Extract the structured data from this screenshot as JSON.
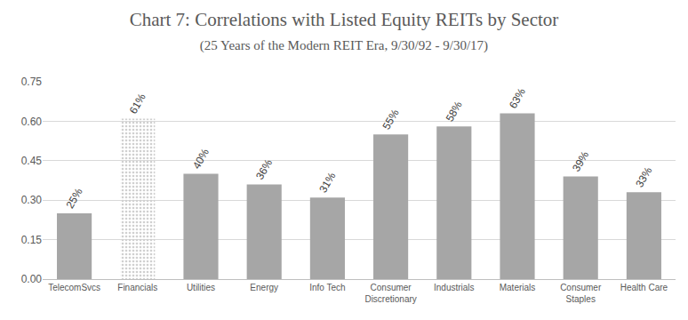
{
  "chart_data": {
    "type": "bar",
    "title": "Chart 7: Correlations with Listed Equity REITs by Sector",
    "subtitle": "(25 Years of the Modern REIT Era, 9/30/92 - 9/30/17)",
    "categories": [
      "TelecomSvcs",
      "Financials",
      "Utilities",
      "Energy",
      "Info Tech",
      "Consumer Discretionary",
      "Industrials",
      "Materials",
      "Consumer Staples",
      "Health Care"
    ],
    "values": [
      0.25,
      0.61,
      0.4,
      0.36,
      0.31,
      0.55,
      0.58,
      0.63,
      0.39,
      0.33
    ],
    "value_labels": [
      "25%",
      "61%",
      "40%",
      "36%",
      "31%",
      "55%",
      "58%",
      "63%",
      "39%",
      "33%"
    ],
    "colors": [
      "#a6a6a6",
      "#d0d0d0",
      "#a6a6a6",
      "#a6a6a6",
      "#a6a6a6",
      "#a6a6a6",
      "#a6a6a6",
      "#a6a6a6",
      "#a6a6a6",
      "#a6a6a6"
    ],
    "ylim": [
      0,
      0.75
    ],
    "yticks": [
      {
        "value": 0,
        "label": "0.00"
      },
      {
        "value": 0.15,
        "label": "0.15"
      },
      {
        "value": 0.3,
        "label": "0.30"
      },
      {
        "value": 0.45,
        "label": "0.45"
      },
      {
        "value": 0.6,
        "label": "0.60"
      },
      {
        "value": 0.75,
        "label": "0.75"
      }
    ],
    "grid": true,
    "data_labels": true
  }
}
